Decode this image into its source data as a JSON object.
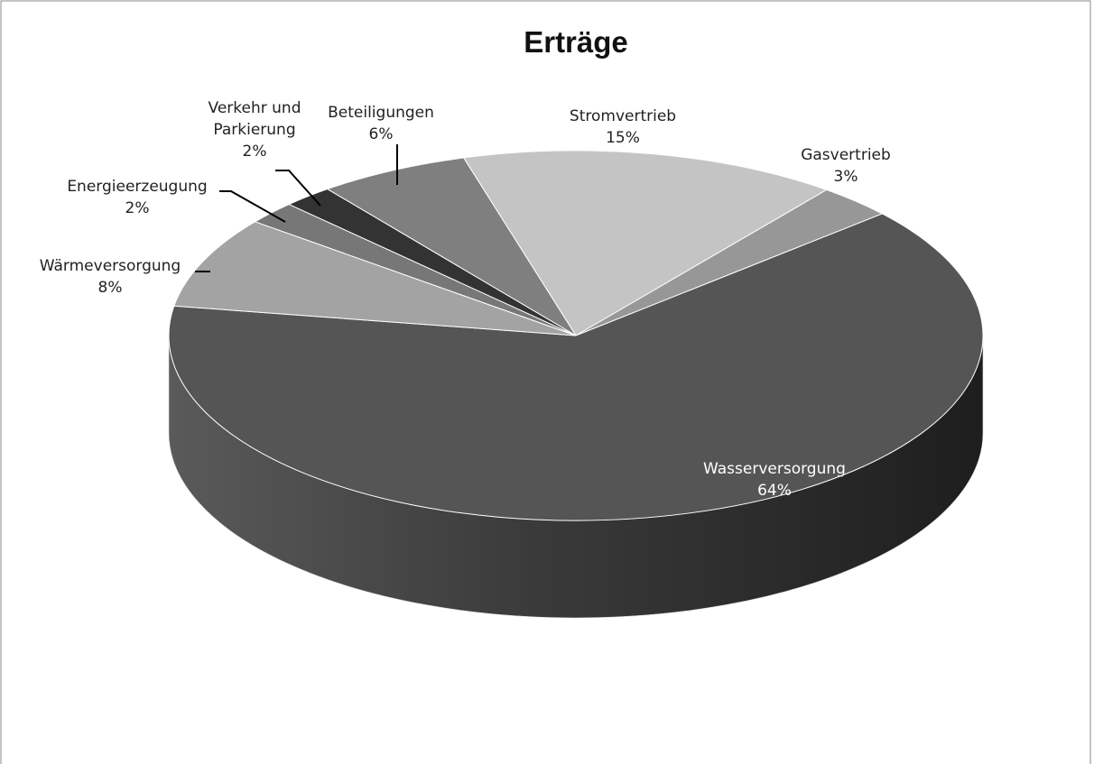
{
  "chart_data": {
    "type": "pie3d",
    "title": "Erträge",
    "categories": [
      "Stromvertrieb",
      "Gasvertrieb",
      "Wasserversorgung",
      "Wärmeversorgung",
      "Energieerzeugung",
      "Verkehr und Parkierung",
      "Beteiligungen"
    ],
    "values": [
      15,
      3,
      64,
      8,
      2,
      2,
      6
    ],
    "value_labels": [
      "15%",
      "3%",
      "64%",
      "8%",
      "2%",
      "2%",
      "6%"
    ],
    "colors": [
      "#c4c4c4",
      "#979797",
      "#555555",
      "#a3a3a3",
      "#777777",
      "#333333",
      "#7f7f7f"
    ]
  }
}
